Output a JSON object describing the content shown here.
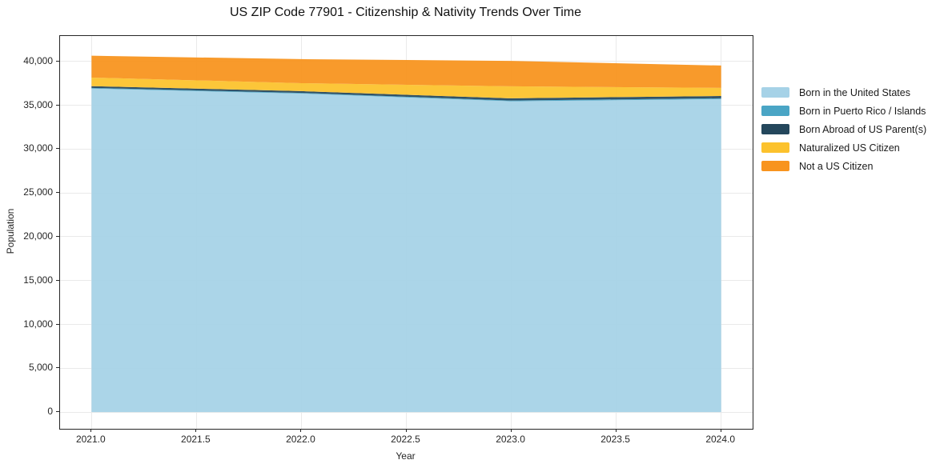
{
  "title": "US ZIP Code 77901 - Citizenship & Nativity Trends Over Time",
  "chart_data": {
    "type": "area",
    "stacked": true,
    "title": "US ZIP Code 77901 - Citizenship & Nativity Trends Over Time",
    "xlabel": "Year",
    "ylabel": "Population",
    "grid": true,
    "legend_position": "right-outside",
    "x": [
      2021,
      2022,
      2023,
      2024
    ],
    "xlim": [
      2020.85,
      2024.15
    ],
    "ylim": [
      -1900,
      42900
    ],
    "x_ticks": [
      {
        "value": 2021.0,
        "label": "2021.0"
      },
      {
        "value": 2021.5,
        "label": "2021.5"
      },
      {
        "value": 2022.0,
        "label": "2022.0"
      },
      {
        "value": 2022.5,
        "label": "2022.5"
      },
      {
        "value": 2023.0,
        "label": "2023.0"
      },
      {
        "value": 2023.5,
        "label": "2023.5"
      },
      {
        "value": 2024.0,
        "label": "2024.0"
      }
    ],
    "y_ticks": [
      {
        "value": 0,
        "label": "0"
      },
      {
        "value": 5000,
        "label": "5,000"
      },
      {
        "value": 10000,
        "label": "10,000"
      },
      {
        "value": 15000,
        "label": "15,000"
      },
      {
        "value": 20000,
        "label": "20,000"
      },
      {
        "value": 25000,
        "label": "25,000"
      },
      {
        "value": 30000,
        "label": "30,000"
      },
      {
        "value": 35000,
        "label": "35,000"
      },
      {
        "value": 40000,
        "label": "40,000"
      }
    ],
    "series": [
      {
        "name": "Born in the United States",
        "color": "#a6d2e7",
        "values": [
          36900,
          36330,
          35450,
          35700
        ]
      },
      {
        "name": "Born in Puerto Rico / Islands",
        "color": "#4aa5c5",
        "values": [
          80,
          80,
          90,
          100
        ]
      },
      {
        "name": "Born Abroad of US Parent(s)",
        "color": "#24475c",
        "values": [
          200,
          200,
          250,
          260
        ]
      },
      {
        "name": "Naturalized US Citizen",
        "color": "#fcc22d",
        "values": [
          980,
          910,
          1370,
          920
        ]
      },
      {
        "name": "Not a US Citizen",
        "color": "#f8941e",
        "values": [
          2490,
          2740,
          2900,
          2550
        ]
      }
    ]
  }
}
